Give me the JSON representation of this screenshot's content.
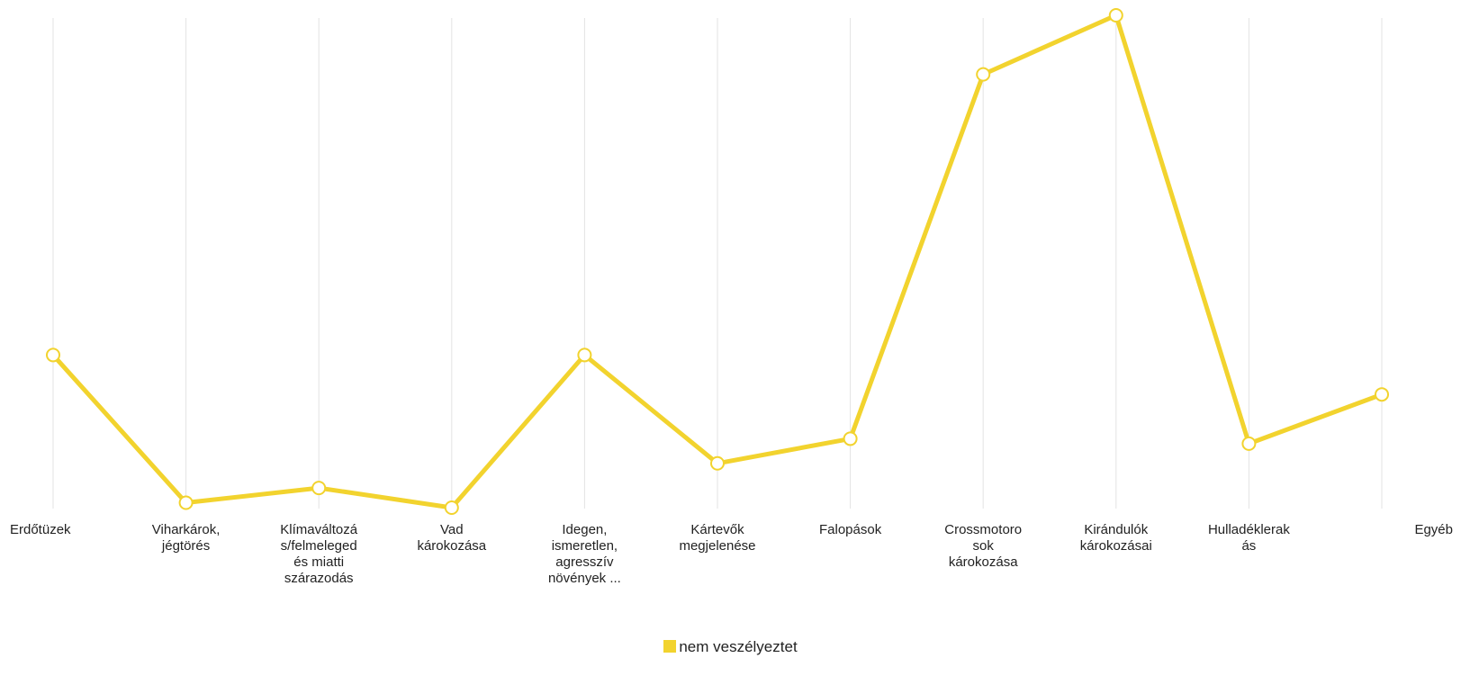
{
  "chart_data": {
    "type": "line",
    "categories": [
      [
        "Erdőtüzek"
      ],
      [
        "Viharkárok,",
        "jégtörés"
      ],
      [
        "Klímaváltozá",
        "s/felmeleged",
        "és miatti",
        "szárazodás"
      ],
      [
        "Vad",
        "károkozása"
      ],
      [
        "Idegen,",
        "ismeretlen,",
        "agresszív",
        "növények ..."
      ],
      [
        "Kártevők",
        "megjelenése"
      ],
      [
        "Falopások"
      ],
      [
        "Crossmotoro",
        "sok",
        "károkozása"
      ],
      [
        "Kirándulók",
        "károkozásai"
      ],
      [
        "Hulladéklerak",
        "ás"
      ],
      [
        "Egyéb"
      ]
    ],
    "series": [
      {
        "name": "nem veszélyeztet",
        "color": "#f2d32e",
        "values": [
          31,
          1,
          4,
          0,
          31,
          9,
          14,
          88,
          100,
          13,
          23
        ]
      }
    ],
    "ylim": [
      0,
      100
    ],
    "grid": "vertical",
    "legend": "bottom",
    "marker": "hollow-circle"
  }
}
